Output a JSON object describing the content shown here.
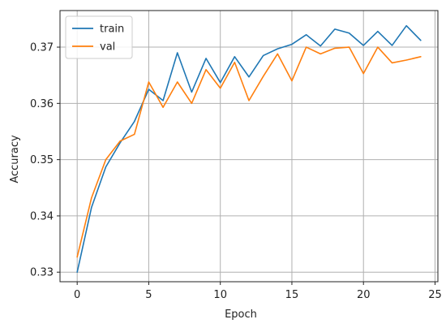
{
  "chart_data": {
    "type": "line",
    "xlabel": "Epoch",
    "ylabel": "Accuracy",
    "xlim": [
      -1.2,
      25.2
    ],
    "ylim": [
      0.3283,
      0.3765
    ],
    "x_ticks": [
      0,
      5,
      10,
      15,
      20,
      25
    ],
    "x_tick_labels": [
      "0",
      "5",
      "10",
      "15",
      "20",
      "25"
    ],
    "y_ticks": [
      0.33,
      0.34,
      0.35,
      0.36,
      0.37
    ],
    "y_tick_labels": [
      "0.33",
      "0.34",
      "0.35",
      "0.36",
      "0.37"
    ],
    "grid": true,
    "legend_position": "top-left",
    "x": [
      0,
      1,
      2,
      3,
      4,
      5,
      6,
      7,
      8,
      9,
      10,
      11,
      12,
      13,
      14,
      15,
      16,
      17,
      18,
      19,
      20,
      21,
      22,
      23,
      24
    ],
    "series": [
      {
        "name": "train",
        "color": "#1f77b4",
        "values": [
          0.33,
          0.3415,
          0.3487,
          0.353,
          0.3568,
          0.3625,
          0.3605,
          0.369,
          0.362,
          0.368,
          0.3637,
          0.3683,
          0.3647,
          0.3685,
          0.3697,
          0.3705,
          0.3722,
          0.3702,
          0.3732,
          0.3725,
          0.3703,
          0.3728,
          0.3703,
          0.3738,
          0.3712
        ]
      },
      {
        "name": "val",
        "color": "#ff7f0e",
        "values": [
          0.3327,
          0.3432,
          0.35,
          0.3533,
          0.3545,
          0.3638,
          0.3593,
          0.3638,
          0.36,
          0.366,
          0.3627,
          0.3673,
          0.3605,
          0.3648,
          0.3688,
          0.364,
          0.37,
          0.3688,
          0.3698,
          0.37,
          0.3653,
          0.37,
          0.3672,
          0.3677,
          0.3683
        ]
      }
    ]
  }
}
